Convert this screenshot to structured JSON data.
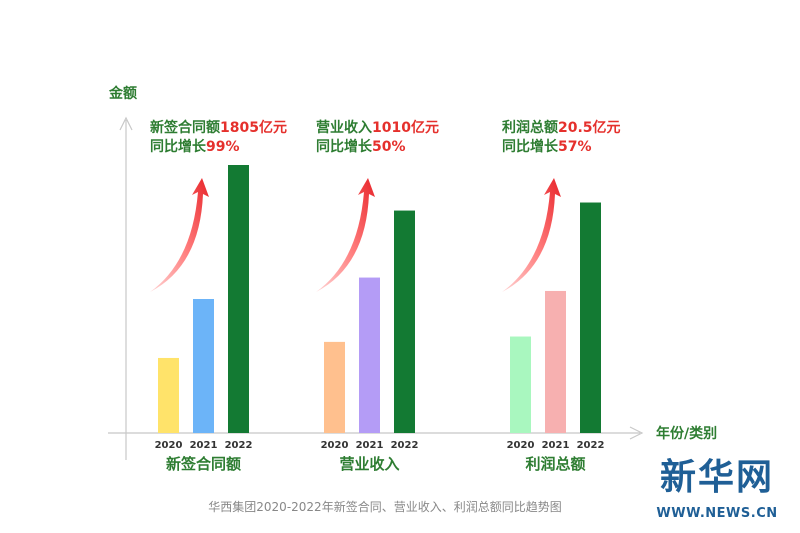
{
  "chart_data": {
    "type": "bar",
    "yaxis_label": "金额",
    "xaxis_label": "年份/类别",
    "caption": "华西集团2020-2022年新签合同、营业收入、利润总额同比趋势图",
    "groups": [
      {
        "name": "新签合同额",
        "years": [
          "2020",
          "2021",
          "2022"
        ],
        "values": [
          28,
          50,
          100
        ],
        "colors": [
          "#ffe36a",
          "#6cb4f8",
          "#137a33"
        ],
        "annotation": {
          "prefix": "新签合同额",
          "value": "1805亿元",
          "growth_prefix": "同比增长",
          "growth": "99%"
        }
      },
      {
        "name": "营业收入",
        "years": [
          "2020",
          "2021",
          "2022"
        ],
        "values": [
          34,
          58,
          83
        ],
        "colors": [
          "#ffc08e",
          "#b49cf6",
          "#137a33"
        ],
        "annotation": {
          "prefix": "营业收入",
          "value": "1010亿元",
          "growth_prefix": "同比增长",
          "growth": "50%"
        }
      },
      {
        "name": "利润总额",
        "years": [
          "2020",
          "2021",
          "2022"
        ],
        "values": [
          36,
          53,
          86
        ],
        "colors": [
          "#a9f7bf",
          "#f7b0b0",
          "#137a33"
        ],
        "annotation": {
          "prefix": "利润总额",
          "value": "20.5亿元",
          "growth_prefix": "同比增长",
          "growth": "57%"
        }
      }
    ],
    "accent_colors": {
      "green": "#2e7d32",
      "red": "#e5302c"
    }
  },
  "logo": {
    "main": "新华网",
    "url": "WWW.NEWS.CN"
  }
}
